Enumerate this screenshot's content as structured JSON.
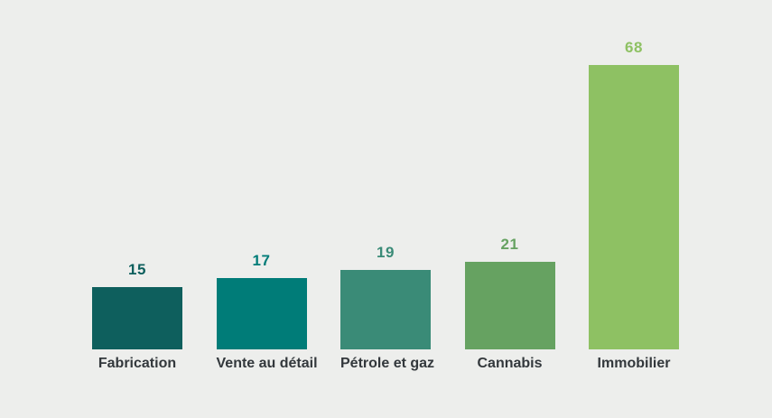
{
  "chart_data": {
    "type": "bar",
    "categories": [
      "Fabrication",
      "Vente au détail",
      "Pétrole et gaz",
      "Cannabis",
      "Immobilier"
    ],
    "values": [
      15,
      17,
      19,
      21,
      68
    ],
    "bar_colors": [
      "#0e5f5d",
      "#007c78",
      "#3a8b77",
      "#66a261",
      "#8ec163"
    ],
    "title": "",
    "xlabel": "",
    "ylabel": "",
    "ylim": [
      0,
      68
    ],
    "grid": false,
    "legend": false,
    "value_labels_shown": true,
    "background_color": "#edeeec",
    "category_label_color": "#33383c"
  }
}
